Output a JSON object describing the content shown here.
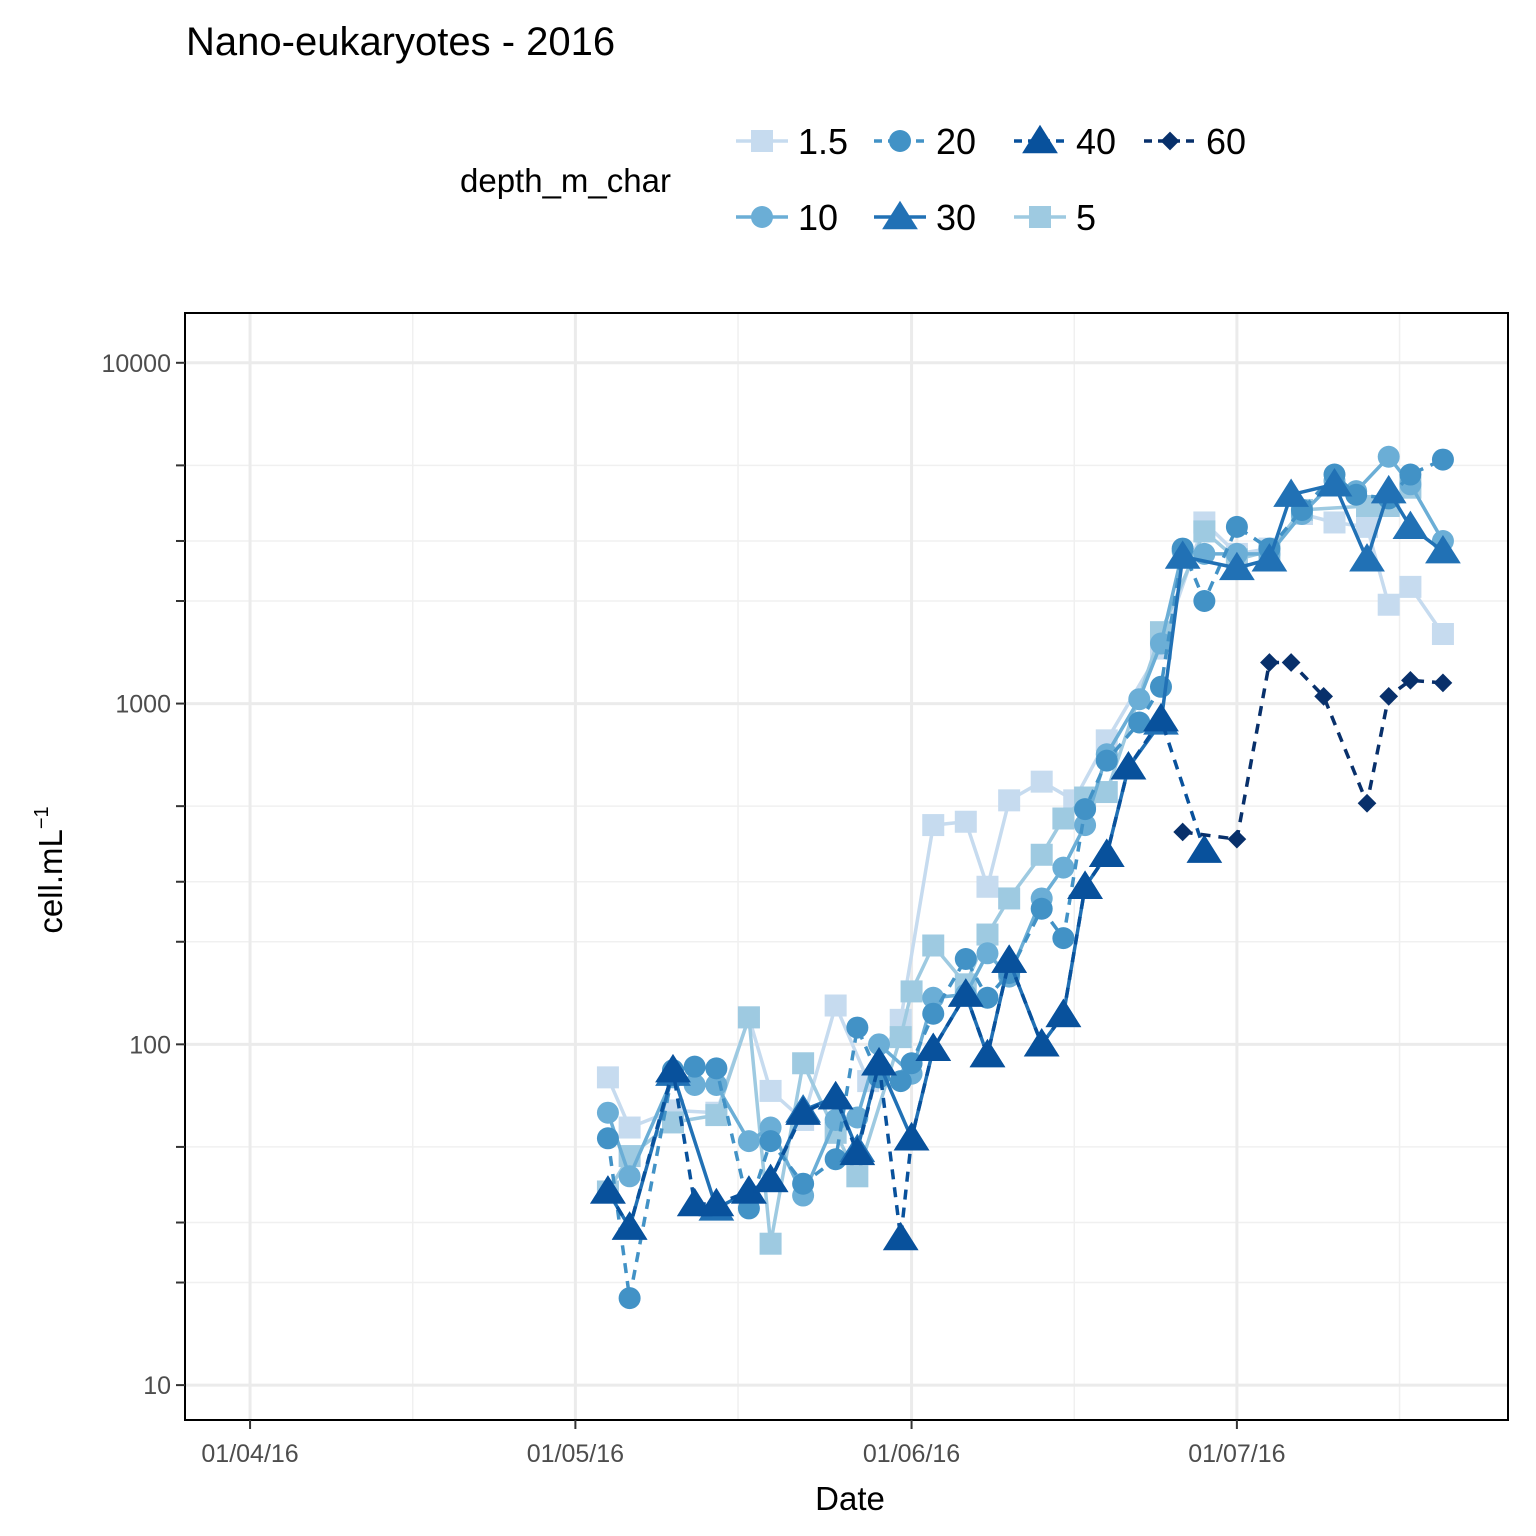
{
  "chart_data": {
    "type": "line",
    "title": "Nano-eukaryotes - 2016",
    "xlabel": "Date",
    "ylabel_main": "cell.mL",
    "ylabel_superscript": "−1",
    "y_scale": "log10",
    "ylim": [
      7.9,
      14000
    ],
    "xlim": [
      "2016-03-26",
      "2016-07-26"
    ],
    "grid": true,
    "legend": {
      "title": "depth_m_char",
      "placement": "top",
      "entries": [
        {
          "key": "1.5",
          "label": "1.5"
        },
        {
          "key": "20",
          "label": "20"
        },
        {
          "key": "40",
          "label": "40"
        },
        {
          "key": "60",
          "label": "60"
        },
        {
          "key": "10",
          "label": "10"
        },
        {
          "key": "30",
          "label": "30"
        },
        {
          "key": "5",
          "label": "5"
        }
      ]
    },
    "y_ticks": [
      {
        "value": 10,
        "label": "10"
      },
      {
        "value": 100,
        "label": "100"
      },
      {
        "value": 1000,
        "label": "1000"
      },
      {
        "value": 10000,
        "label": "10000"
      }
    ],
    "x_ticks": [
      {
        "date": "2016-04-01",
        "label": "01/04/16"
      },
      {
        "date": "2016-05-01",
        "label": "01/05/16"
      },
      {
        "date": "2016-06-01",
        "label": "01/06/16"
      },
      {
        "date": "2016-07-01",
        "label": "01/07/16"
      }
    ],
    "x_minor_dates": [
      "2016-04-16",
      "2016-05-16",
      "2016-06-16",
      "2016-07-16"
    ],
    "series": [
      {
        "name": "1.5",
        "color": "#c6dbef",
        "shape": "square",
        "linetype": "solid",
        "points": [
          [
            "2016-05-04",
            80
          ],
          [
            "2016-05-06",
            57
          ],
          [
            "2016-05-10",
            64
          ],
          [
            "2016-05-14",
            63
          ],
          [
            "2016-05-17",
            120
          ],
          [
            "2016-05-19",
            73
          ],
          [
            "2016-05-22",
            60
          ],
          [
            "2016-05-25",
            130
          ],
          [
            "2016-05-28",
            78
          ],
          [
            "2016-05-31",
            118
          ],
          [
            "2016-06-03",
            440
          ],
          [
            "2016-06-06",
            450
          ],
          [
            "2016-06-08",
            290
          ],
          [
            "2016-06-10",
            520
          ],
          [
            "2016-06-13",
            590
          ],
          [
            "2016-06-16",
            520
          ],
          [
            "2016-06-19",
            780
          ],
          [
            "2016-06-24",
            1450
          ],
          [
            "2016-06-28",
            3400
          ],
          [
            "2016-07-01",
            2750
          ],
          [
            "2016-07-04",
            2850
          ],
          [
            "2016-07-07",
            3600
          ],
          [
            "2016-07-10",
            3400
          ],
          [
            "2016-07-13",
            3300
          ],
          [
            "2016-07-15",
            1950
          ],
          [
            "2016-07-17",
            2200
          ],
          [
            "2016-07-20",
            1600
          ]
        ]
      },
      {
        "name": "5",
        "color": "#9ecae1",
        "shape": "square",
        "linetype": "solid",
        "points": [
          [
            "2016-05-04",
            37
          ],
          [
            "2016-05-06",
            47
          ],
          [
            "2016-05-10",
            59
          ],
          [
            "2016-05-14",
            62
          ],
          [
            "2016-05-17",
            120
          ],
          [
            "2016-05-19",
            26
          ],
          [
            "2016-05-22",
            88
          ],
          [
            "2016-05-25",
            55
          ],
          [
            "2016-05-27",
            41
          ],
          [
            "2016-05-31",
            105
          ],
          [
            "2016-06-01",
            143
          ],
          [
            "2016-06-03",
            195
          ],
          [
            "2016-06-06",
            150
          ],
          [
            "2016-06-08",
            210
          ],
          [
            "2016-06-10",
            268
          ],
          [
            "2016-06-13",
            360
          ],
          [
            "2016-06-15",
            460
          ],
          [
            "2016-06-17",
            530
          ],
          [
            "2016-06-19",
            550
          ],
          [
            "2016-06-24",
            1620
          ],
          [
            "2016-06-28",
            3200
          ],
          [
            "2016-07-01",
            2650
          ],
          [
            "2016-07-04",
            2800
          ],
          [
            "2016-07-07",
            3700
          ],
          [
            "2016-07-13",
            3800
          ],
          [
            "2016-07-15",
            3800
          ],
          [
            "2016-07-17",
            4300
          ]
        ]
      },
      {
        "name": "10",
        "color": "#6baed6",
        "shape": "circle",
        "linetype": "solid",
        "points": [
          [
            "2016-05-04",
            63
          ],
          [
            "2016-05-06",
            41
          ],
          [
            "2016-05-10",
            80
          ],
          [
            "2016-05-12",
            76
          ],
          [
            "2016-05-14",
            76
          ],
          [
            "2016-05-17",
            52
          ],
          [
            "2016-05-19",
            57
          ],
          [
            "2016-05-22",
            36
          ],
          [
            "2016-05-25",
            60
          ],
          [
            "2016-05-27",
            61
          ],
          [
            "2016-05-29",
            100
          ],
          [
            "2016-06-01",
            82
          ],
          [
            "2016-06-03",
            137
          ],
          [
            "2016-06-06",
            140
          ],
          [
            "2016-06-08",
            185
          ],
          [
            "2016-06-10",
            158
          ],
          [
            "2016-06-13",
            268
          ],
          [
            "2016-06-15",
            330
          ],
          [
            "2016-06-17",
            440
          ],
          [
            "2016-06-19",
            710
          ],
          [
            "2016-06-22",
            1030
          ],
          [
            "2016-06-24",
            1500
          ],
          [
            "2016-06-26",
            2800
          ],
          [
            "2016-06-28",
            2750
          ],
          [
            "2016-07-01",
            2750
          ],
          [
            "2016-07-04",
            2750
          ],
          [
            "2016-07-07",
            3600
          ],
          [
            "2016-07-10",
            4500
          ],
          [
            "2016-07-12",
            4200
          ],
          [
            "2016-07-15",
            5300
          ],
          [
            "2016-07-17",
            4400
          ],
          [
            "2016-07-20",
            3000
          ]
        ]
      },
      {
        "name": "20",
        "color": "#4292c6",
        "shape": "circle",
        "linetype": "dashed",
        "points": [
          [
            "2016-05-04",
            53
          ],
          [
            "2016-05-06",
            18
          ],
          [
            "2016-05-10",
            84
          ],
          [
            "2016-05-12",
            86
          ],
          [
            "2016-05-14",
            85
          ],
          [
            "2016-05-17",
            33
          ],
          [
            "2016-05-19",
            52
          ],
          [
            "2016-05-22",
            39
          ],
          [
            "2016-05-25",
            46
          ],
          [
            "2016-05-27",
            112
          ],
          [
            "2016-05-29",
            80
          ],
          [
            "2016-05-31",
            78
          ],
          [
            "2016-06-01",
            88
          ],
          [
            "2016-06-03",
            123
          ],
          [
            "2016-06-06",
            178
          ],
          [
            "2016-06-08",
            137
          ],
          [
            "2016-06-10",
            162
          ],
          [
            "2016-06-13",
            250
          ],
          [
            "2016-06-15",
            205
          ],
          [
            "2016-06-17",
            490
          ],
          [
            "2016-06-19",
            680
          ],
          [
            "2016-06-22",
            880
          ],
          [
            "2016-06-24",
            1120
          ],
          [
            "2016-06-26",
            2850
          ],
          [
            "2016-06-28",
            2000
          ],
          [
            "2016-07-01",
            3300
          ],
          [
            "2016-07-04",
            2850
          ],
          [
            "2016-07-07",
            3700
          ],
          [
            "2016-07-10",
            4700
          ],
          [
            "2016-07-12",
            4100
          ],
          [
            "2016-07-15",
            4000
          ],
          [
            "2016-07-17",
            4700
          ],
          [
            "2016-07-20",
            5200
          ]
        ]
      },
      {
        "name": "30",
        "color": "#2171b5",
        "shape": "triangle",
        "linetype": "solid",
        "points": [
          [
            "2016-05-04",
            37
          ],
          [
            "2016-05-06",
            29
          ],
          [
            "2016-05-10",
            82
          ],
          [
            "2016-05-14",
            33
          ],
          [
            "2016-05-17",
            37
          ],
          [
            "2016-05-19",
            40
          ],
          [
            "2016-05-22",
            64
          ],
          [
            "2016-05-25",
            70
          ],
          [
            "2016-05-27",
            49
          ],
          [
            "2016-05-29",
            88
          ],
          [
            "2016-06-01",
            53
          ],
          [
            "2016-06-03",
            97
          ],
          [
            "2016-06-06",
            140
          ],
          [
            "2016-06-08",
            93
          ],
          [
            "2016-06-10",
            176
          ],
          [
            "2016-06-13",
            100
          ],
          [
            "2016-06-15",
            122
          ],
          [
            "2016-06-17",
            290
          ],
          [
            "2016-06-19",
            360
          ],
          [
            "2016-06-21",
            650
          ],
          [
            "2016-06-24",
            880
          ],
          [
            "2016-06-26",
            2700
          ],
          [
            "2016-07-01",
            2500
          ],
          [
            "2016-07-04",
            2650
          ],
          [
            "2016-07-06",
            4100
          ],
          [
            "2016-07-10",
            4400
          ],
          [
            "2016-07-13",
            2650
          ],
          [
            "2016-07-15",
            4200
          ],
          [
            "2016-07-17",
            3300
          ],
          [
            "2016-07-20",
            2800
          ]
        ]
      },
      {
        "name": "40",
        "color": "#08519c",
        "shape": "triangle",
        "linetype": "dashed",
        "points": [
          [
            "2016-05-04",
            37
          ],
          [
            "2016-05-06",
            29
          ],
          [
            "2016-05-10",
            84
          ],
          [
            "2016-05-12",
            34
          ],
          [
            "2016-05-14",
            34
          ],
          [
            "2016-05-17",
            37
          ],
          [
            "2016-05-19",
            40
          ],
          [
            "2016-05-22",
            63
          ],
          [
            "2016-05-25",
            70
          ],
          [
            "2016-05-27",
            48
          ],
          [
            "2016-05-29",
            88
          ],
          [
            "2016-05-31",
            27
          ],
          [
            "2016-06-01",
            53
          ],
          [
            "2016-06-03",
            97
          ],
          [
            "2016-06-06",
            140
          ],
          [
            "2016-06-08",
            93
          ],
          [
            "2016-06-10",
            176
          ],
          [
            "2016-06-13",
            100
          ],
          [
            "2016-06-15",
            122
          ],
          [
            "2016-06-17",
            290
          ],
          [
            "2016-06-19",
            360
          ],
          [
            "2016-06-21",
            650
          ],
          [
            "2016-06-24",
            900
          ],
          [
            "2016-06-28",
            370
          ]
        ]
      },
      {
        "name": "60",
        "color": "#08306b",
        "shape": "diamond",
        "linetype": "dashed",
        "points": [
          [
            "2016-06-26",
            420
          ],
          [
            "2016-07-01",
            400
          ],
          [
            "2016-07-04",
            1320
          ],
          [
            "2016-07-06",
            1320
          ],
          [
            "2016-07-09",
            1050
          ],
          [
            "2016-07-13",
            510
          ],
          [
            "2016-07-15",
            1050
          ],
          [
            "2016-07-17",
            1170
          ],
          [
            "2016-07-20",
            1150
          ]
        ]
      }
    ]
  }
}
